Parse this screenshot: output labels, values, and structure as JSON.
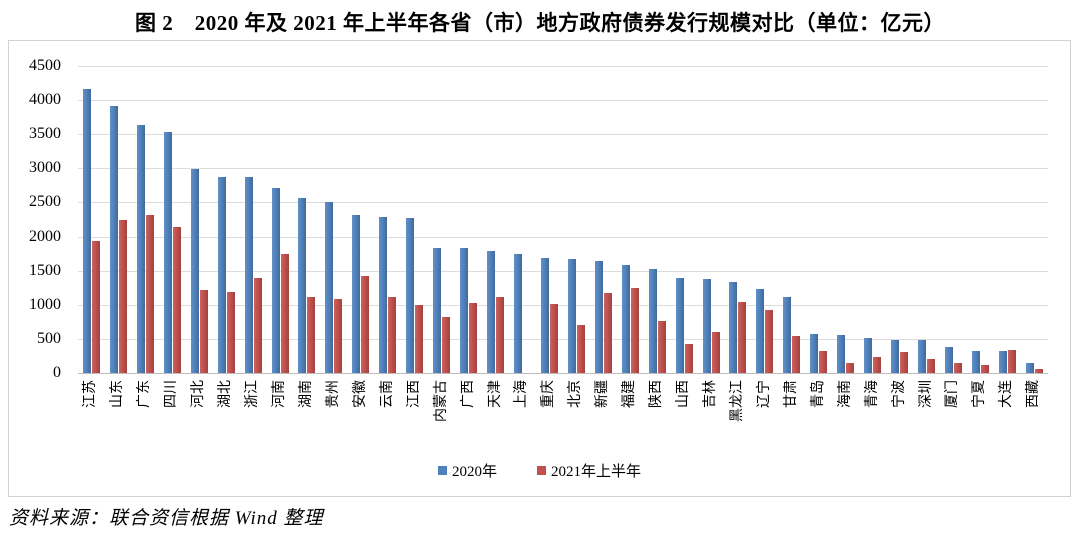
{
  "title": "图 2　2020 年及 2021 年上半年各省（市）地方政府债券发行规模对比（单位：亿元）",
  "source": "资料来源：联合资信根据 Wind 整理",
  "chart_data": {
    "type": "bar",
    "title": "图 2　2020 年及 2021 年上半年各省（市）地方政府债券发行规模对比（单位：亿元）",
    "xlabel": "",
    "ylabel": "",
    "ylim": [
      0,
      4500
    ],
    "ytick_step": 500,
    "grid": true,
    "legend_position": "bottom",
    "categories": [
      "江苏",
      "山东",
      "广东",
      "四川",
      "河北",
      "湖北",
      "浙江",
      "河南",
      "湖南",
      "贵州",
      "安徽",
      "云南",
      "江西",
      "内蒙古",
      "广西",
      "天津",
      "上海",
      "重庆",
      "北京",
      "新疆",
      "福建",
      "陕西",
      "山西",
      "吉林",
      "黑龙江",
      "辽宁",
      "甘肃",
      "青岛",
      "海南",
      "青海",
      "宁波",
      "深圳",
      "厦门",
      "宁夏",
      "大连",
      "西藏"
    ],
    "series": [
      {
        "name": "2020年",
        "color": "#4F81BD",
        "values": [
          4160,
          3920,
          3630,
          3530,
          2990,
          2880,
          2870,
          2710,
          2560,
          2510,
          2320,
          2290,
          2280,
          1840,
          1830,
          1790,
          1750,
          1680,
          1670,
          1640,
          1590,
          1520,
          1400,
          1380,
          1340,
          1230,
          1120,
          570,
          560,
          520,
          490,
          480,
          380,
          320,
          320,
          150
        ]
      },
      {
        "name": "2021年上半年",
        "color": "#C0504D",
        "values": [
          1930,
          2250,
          2310,
          2140,
          1220,
          1190,
          1390,
          1750,
          1110,
          1090,
          1420,
          1120,
          1000,
          820,
          1020,
          1120,
          0,
          1010,
          700,
          1180,
          1250,
          770,
          420,
          600,
          1040,
          930,
          550,
          320,
          150,
          230,
          310,
          200,
          150,
          120,
          340,
          60
        ]
      }
    ]
  },
  "colors": {
    "series_2020": "#4F81BD",
    "series_2021": "#C0504D",
    "gridline": "#DCDCDC",
    "axis_line": "#BDBDBD",
    "chart_border": "#D2D2D2"
  }
}
